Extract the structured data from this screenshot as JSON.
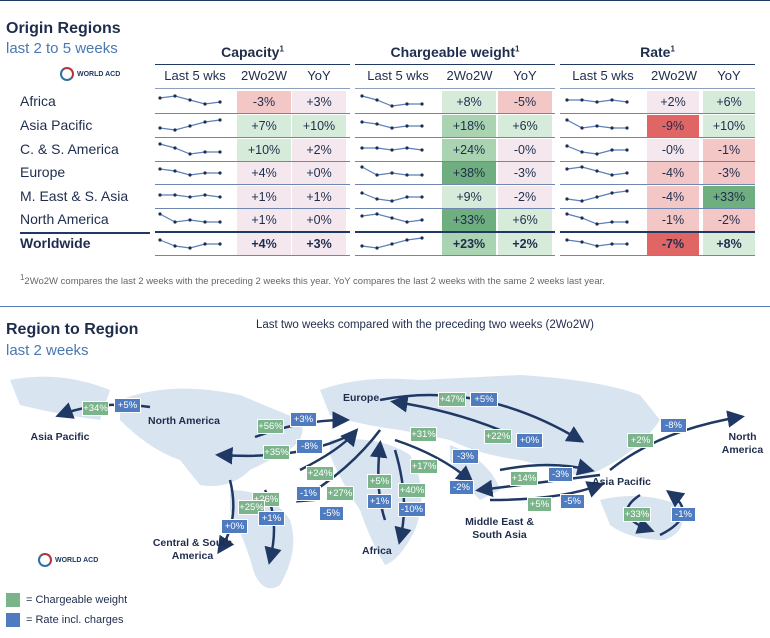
{
  "header": {
    "title": "Origin Regions",
    "subtitle": "last 2 to 5 weeks",
    "logo_text": "WORLD ACD"
  },
  "groups": [
    {
      "title": "Capacity",
      "sup": "1"
    },
    {
      "title": "Chargeable weight",
      "sup": "1"
    },
    {
      "title": "Rate",
      "sup": "1"
    }
  ],
  "columns": [
    "Last 5 wks",
    "2Wo2W",
    "YoY"
  ],
  "rows": [
    {
      "label": "Africa",
      "capacity": [
        "-3%",
        "+3%"
      ],
      "weight": [
        "+8%",
        "-5%"
      ],
      "rate": [
        "+2%",
        "+6%"
      ]
    },
    {
      "label": "Asia Pacific",
      "capacity": [
        "+7%",
        "+10%"
      ],
      "weight": [
        "+18%",
        "+6%"
      ],
      "rate": [
        "-9%",
        "+10%"
      ]
    },
    {
      "label": "C. & S. America",
      "capacity": [
        "+10%",
        "+2%"
      ],
      "weight": [
        "+24%",
        "-0%"
      ],
      "rate": [
        "-0%",
        "-1%"
      ]
    },
    {
      "label": "Europe",
      "capacity": [
        "+4%",
        "+0%"
      ],
      "weight": [
        "+38%",
        "-3%"
      ],
      "rate": [
        "-4%",
        "-3%"
      ]
    },
    {
      "label": "M. East & S. Asia",
      "capacity": [
        "+1%",
        "+1%"
      ],
      "weight": [
        "+9%",
        "-2%"
      ],
      "rate": [
        "-4%",
        "+33%"
      ]
    },
    {
      "label": "North America",
      "capacity": [
        "+1%",
        "+0%"
      ],
      "weight": [
        "+33%",
        "+6%"
      ],
      "rate": [
        "-1%",
        "-2%"
      ]
    },
    {
      "label": "Worldwide",
      "capacity": [
        "+4%",
        "+3%"
      ],
      "weight": [
        "+23%",
        "+2%"
      ],
      "rate": [
        "-7%",
        "+8%"
      ],
      "bold": true
    }
  ],
  "footnote": "2Wo2W compares the last 2 weeks with the preceding 2 weeks this year. YoY compares the last 2 weeks with the same 2 weeks last year.",
  "footnote_mark": "1",
  "section2": {
    "title": "Region to Region",
    "subtitle": "last 2 weeks",
    "caption": "Last two weeks compared with the preceding two weeks (2Wo2W)"
  },
  "map_labels": {
    "asia_pacific_left": "Asia Pacific",
    "north_america": "North America",
    "europe": "Europe",
    "north_america_right": "North America",
    "asia_pacific": "Asia Pacific",
    "central_south_america": "Central & South America",
    "africa": "Africa",
    "middle_east": "Middle East & South Asia"
  },
  "map_tags": [
    {
      "text": "+34%",
      "kind": "g"
    },
    {
      "text": "+5%",
      "kind": "b"
    },
    {
      "text": "+56%",
      "kind": "g"
    },
    {
      "text": "+3%",
      "kind": "b"
    },
    {
      "text": "+35%",
      "kind": "g"
    },
    {
      "text": "-8%",
      "kind": "b"
    },
    {
      "text": "+47%",
      "kind": "g"
    },
    {
      "text": "+5%",
      "kind": "b"
    },
    {
      "text": "+31%",
      "kind": "g"
    },
    {
      "text": "+22%",
      "kind": "g"
    },
    {
      "text": "+0%",
      "kind": "b"
    },
    {
      "text": "+2%",
      "kind": "g"
    },
    {
      "text": "-8%",
      "kind": "b"
    },
    {
      "text": "-3%",
      "kind": "b"
    },
    {
      "text": "+17%",
      "kind": "g"
    },
    {
      "text": "+24%",
      "kind": "g"
    },
    {
      "text": "+27%",
      "kind": "g"
    },
    {
      "text": "-1%",
      "kind": "b"
    },
    {
      "text": "+26%",
      "kind": "g"
    },
    {
      "text": "+25%",
      "kind": "g"
    },
    {
      "text": "+0%",
      "kind": "b"
    },
    {
      "text": "+1%",
      "kind": "b"
    },
    {
      "text": "-5%",
      "kind": "b"
    },
    {
      "text": "+5%",
      "kind": "g"
    },
    {
      "text": "+1%",
      "kind": "b"
    },
    {
      "text": "+40%",
      "kind": "g"
    },
    {
      "text": "-10%",
      "kind": "b"
    },
    {
      "text": "-2%",
      "kind": "b"
    },
    {
      "text": "+14%",
      "kind": "g"
    },
    {
      "text": "-3%",
      "kind": "b"
    },
    {
      "text": "+5%",
      "kind": "g"
    },
    {
      "text": "-5%",
      "kind": "b"
    },
    {
      "text": "+33%",
      "kind": "g"
    },
    {
      "text": "-1%",
      "kind": "b"
    }
  ],
  "legend": [
    {
      "text": "= Chargeable weight",
      "color": "#7bb48a"
    },
    {
      "text": "= Rate incl. charges",
      "color": "#4f7cc0"
    }
  ],
  "colors": {
    "green_strong": "#6fae7e",
    "green_mid": "#a9d3b1",
    "green_light": "#d7ebdb",
    "red_strong": "#e06666",
    "red_light": "#f4c7c7",
    "neutral": "#f4e8ee"
  }
}
